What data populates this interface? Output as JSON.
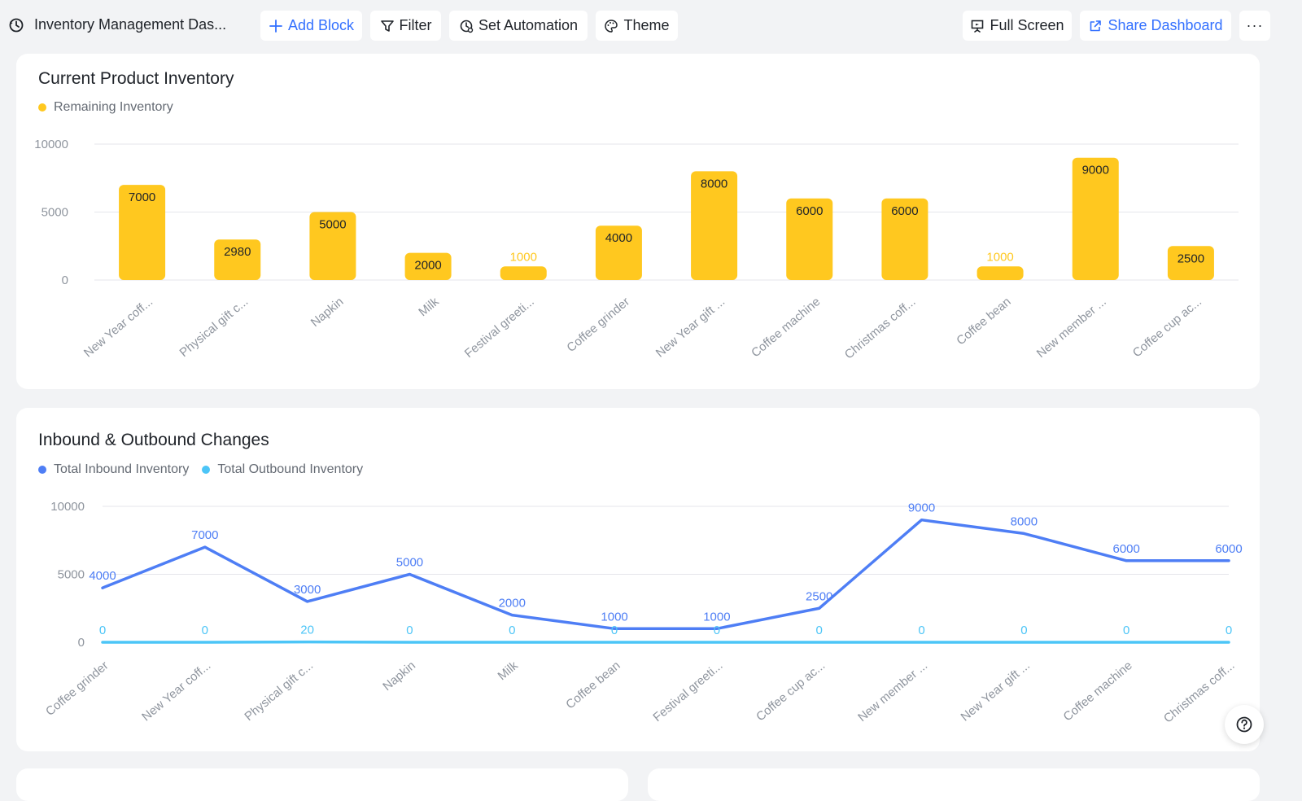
{
  "header": {
    "title": "Inventory Management Das...",
    "add_block": "Add Block",
    "filter": "Filter",
    "set_automation": "Set Automation",
    "theme": "Theme",
    "full_screen": "Full Screen",
    "share_dashboard": "Share Dashboard",
    "more": "···"
  },
  "colors": {
    "accent": "#3370ff",
    "bar": "#ffc81f",
    "inbound": "#4e7ef5",
    "outbound": "#4cc5f7",
    "grid": "#e5e6eb",
    "axis_text": "#8f959e"
  },
  "chart_data": [
    {
      "type": "bar",
      "title": "Current Product Inventory",
      "legend_position": "top-left",
      "grid": true,
      "ylim": [
        0,
        10000
      ],
      "yticks": [
        0,
        5000,
        10000
      ],
      "categories": [
        "New Year coff...",
        "Physical gift c...",
        "Napkin",
        "Milk",
        "Festival greeti...",
        "Coffee grinder",
        "New Year gift ...",
        "Coffee machine",
        "Christmas coff...",
        "Coffee bean",
        "New member ...",
        "Coffee cup ac..."
      ],
      "series": [
        {
          "name": "Remaining Inventory",
          "values": [
            7000,
            2980,
            5000,
            2000,
            1000,
            4000,
            8000,
            6000,
            6000,
            1000,
            9000,
            2500
          ]
        }
      ]
    },
    {
      "type": "line",
      "title": "Inbound & Outbound Changes",
      "legend_position": "top-left",
      "grid": true,
      "ylim": [
        0,
        10000
      ],
      "yticks": [
        0,
        5000,
        10000
      ],
      "categories": [
        "Coffee grinder",
        "New Year coff...",
        "Physical gift c...",
        "Napkin",
        "Milk",
        "Coffee bean",
        "Festival greeti...",
        "Coffee cup ac...",
        "New member ...",
        "New Year gift ...",
        "Coffee machine",
        "Christmas coff..."
      ],
      "series": [
        {
          "name": "Total Inbound Inventory",
          "values": [
            4000,
            7000,
            3000,
            5000,
            2000,
            1000,
            1000,
            2500,
            9000,
            8000,
            6000,
            6000
          ]
        },
        {
          "name": "Total Outbound Inventory",
          "values": [
            0,
            0,
            20,
            0,
            0,
            0,
            0,
            0,
            0,
            0,
            0,
            0
          ]
        }
      ]
    }
  ]
}
